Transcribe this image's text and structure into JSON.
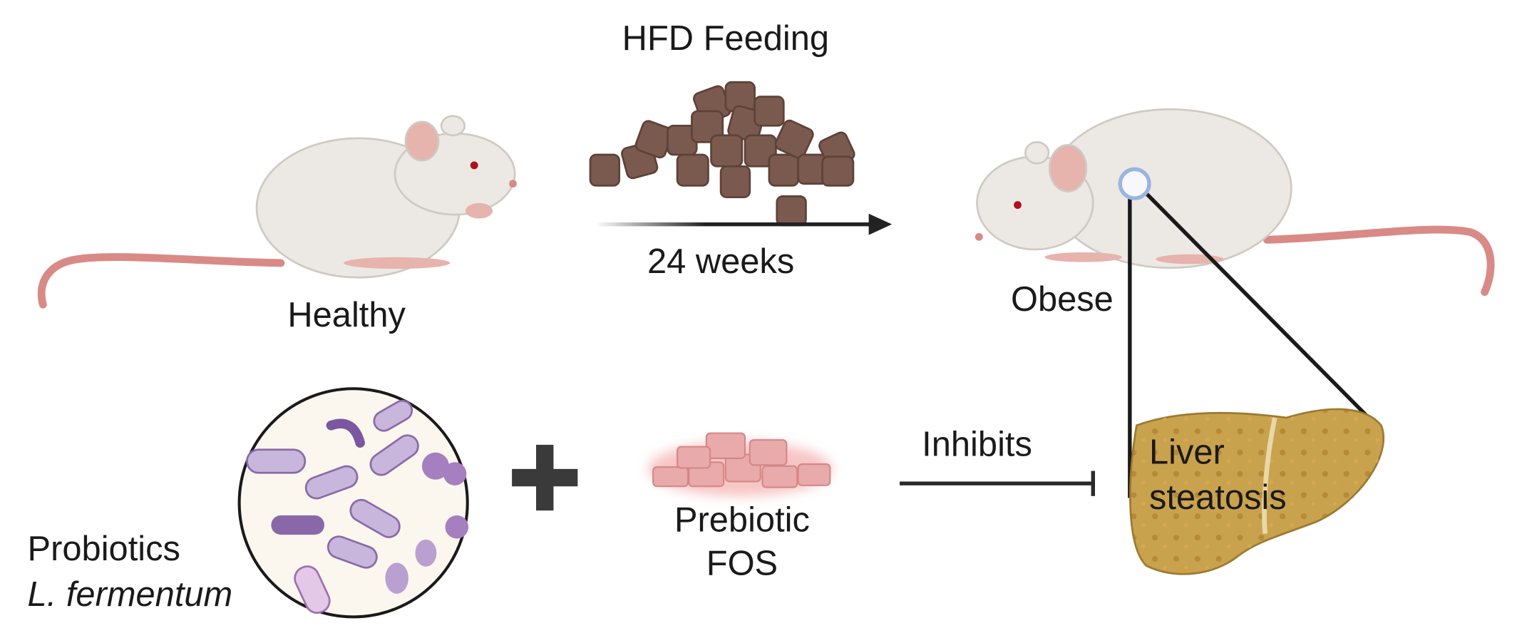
{
  "top": {
    "title": "HFD Feeding",
    "duration": "24 weeks"
  },
  "mice": {
    "healthy": "Healthy",
    "obese": "Obese"
  },
  "treatment": {
    "probiotics": "Probiotics",
    "strain": "L. fermentum",
    "prebiotic": "Prebiotic",
    "prebiotic_type": "FOS",
    "effect": "Inhibits"
  },
  "outcome": {
    "line1": "Liver",
    "line2": "steatosis"
  }
}
